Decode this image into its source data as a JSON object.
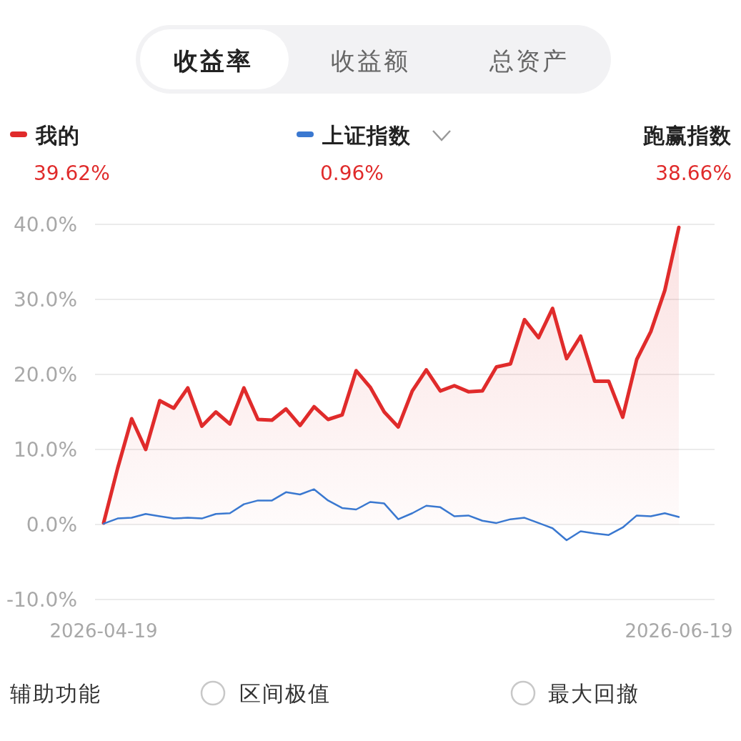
{
  "chart_data": {
    "type": "line",
    "categories": [
      "2026-04-19",
      null,
      null,
      null,
      null,
      null,
      null,
      null,
      null,
      null,
      null,
      null,
      null,
      null,
      null,
      null,
      null,
      null,
      null,
      null,
      null,
      null,
      null,
      null,
      null,
      null,
      null,
      null,
      null,
      null,
      null,
      null,
      null,
      null,
      null,
      null,
      null,
      null,
      null,
      null,
      null,
      "2026-06-19"
    ],
    "series": [
      {
        "name": "我的",
        "type": "area",
        "color": "#e02b2b",
        "values": [
          0.2,
          7.5,
          14.1,
          10.0,
          16.5,
          15.5,
          18.2,
          13.1,
          15.0,
          13.4,
          18.2,
          14.0,
          13.9,
          15.4,
          13.2,
          15.7,
          14.0,
          14.6,
          20.5,
          18.3,
          15.0,
          13.0,
          17.8,
          20.6,
          17.8,
          18.5,
          17.7,
          17.8,
          21.0,
          21.4,
          27.3,
          24.9,
          28.8,
          22.1,
          25.1,
          19.1,
          19.1,
          14.3,
          22.0,
          25.7,
          31.2,
          39.6
        ]
      },
      {
        "name": "上证指数",
        "type": "line",
        "color": "#3a78d0",
        "values": [
          0.1,
          0.8,
          0.9,
          1.4,
          1.1,
          0.8,
          0.9,
          0.8,
          1.4,
          1.5,
          2.7,
          3.2,
          3.2,
          4.3,
          4.0,
          4.7,
          3.2,
          2.2,
          2.0,
          3.0,
          2.8,
          0.7,
          1.5,
          2.5,
          2.3,
          1.1,
          1.2,
          0.5,
          0.2,
          0.7,
          0.9,
          0.2,
          -0.5,
          -2.1,
          -0.9,
          -1.2,
          -1.4,
          -0.4,
          1.2,
          1.1,
          1.5,
          1.0
        ]
      }
    ],
    "ylim": [
      -10,
      40
    ],
    "yticks": [
      {
        "value": -10,
        "label": "-10.0%"
      },
      {
        "value": 0,
        "label": "0.0%"
      },
      {
        "value": 10,
        "label": "10.0%"
      },
      {
        "value": 20,
        "label": "20.0%"
      },
      {
        "value": 30,
        "label": "30.0%"
      },
      {
        "value": 40,
        "label": "40.0%"
      }
    ],
    "grid": "y",
    "legend": "top",
    "annotations": [
      "收益率",
      "收益额",
      "总资产",
      "39.62%",
      "0.96%",
      "跑赢指数",
      "38.66%",
      "辅助功能",
      "区间极值",
      "最大回撤"
    ]
  }
}
